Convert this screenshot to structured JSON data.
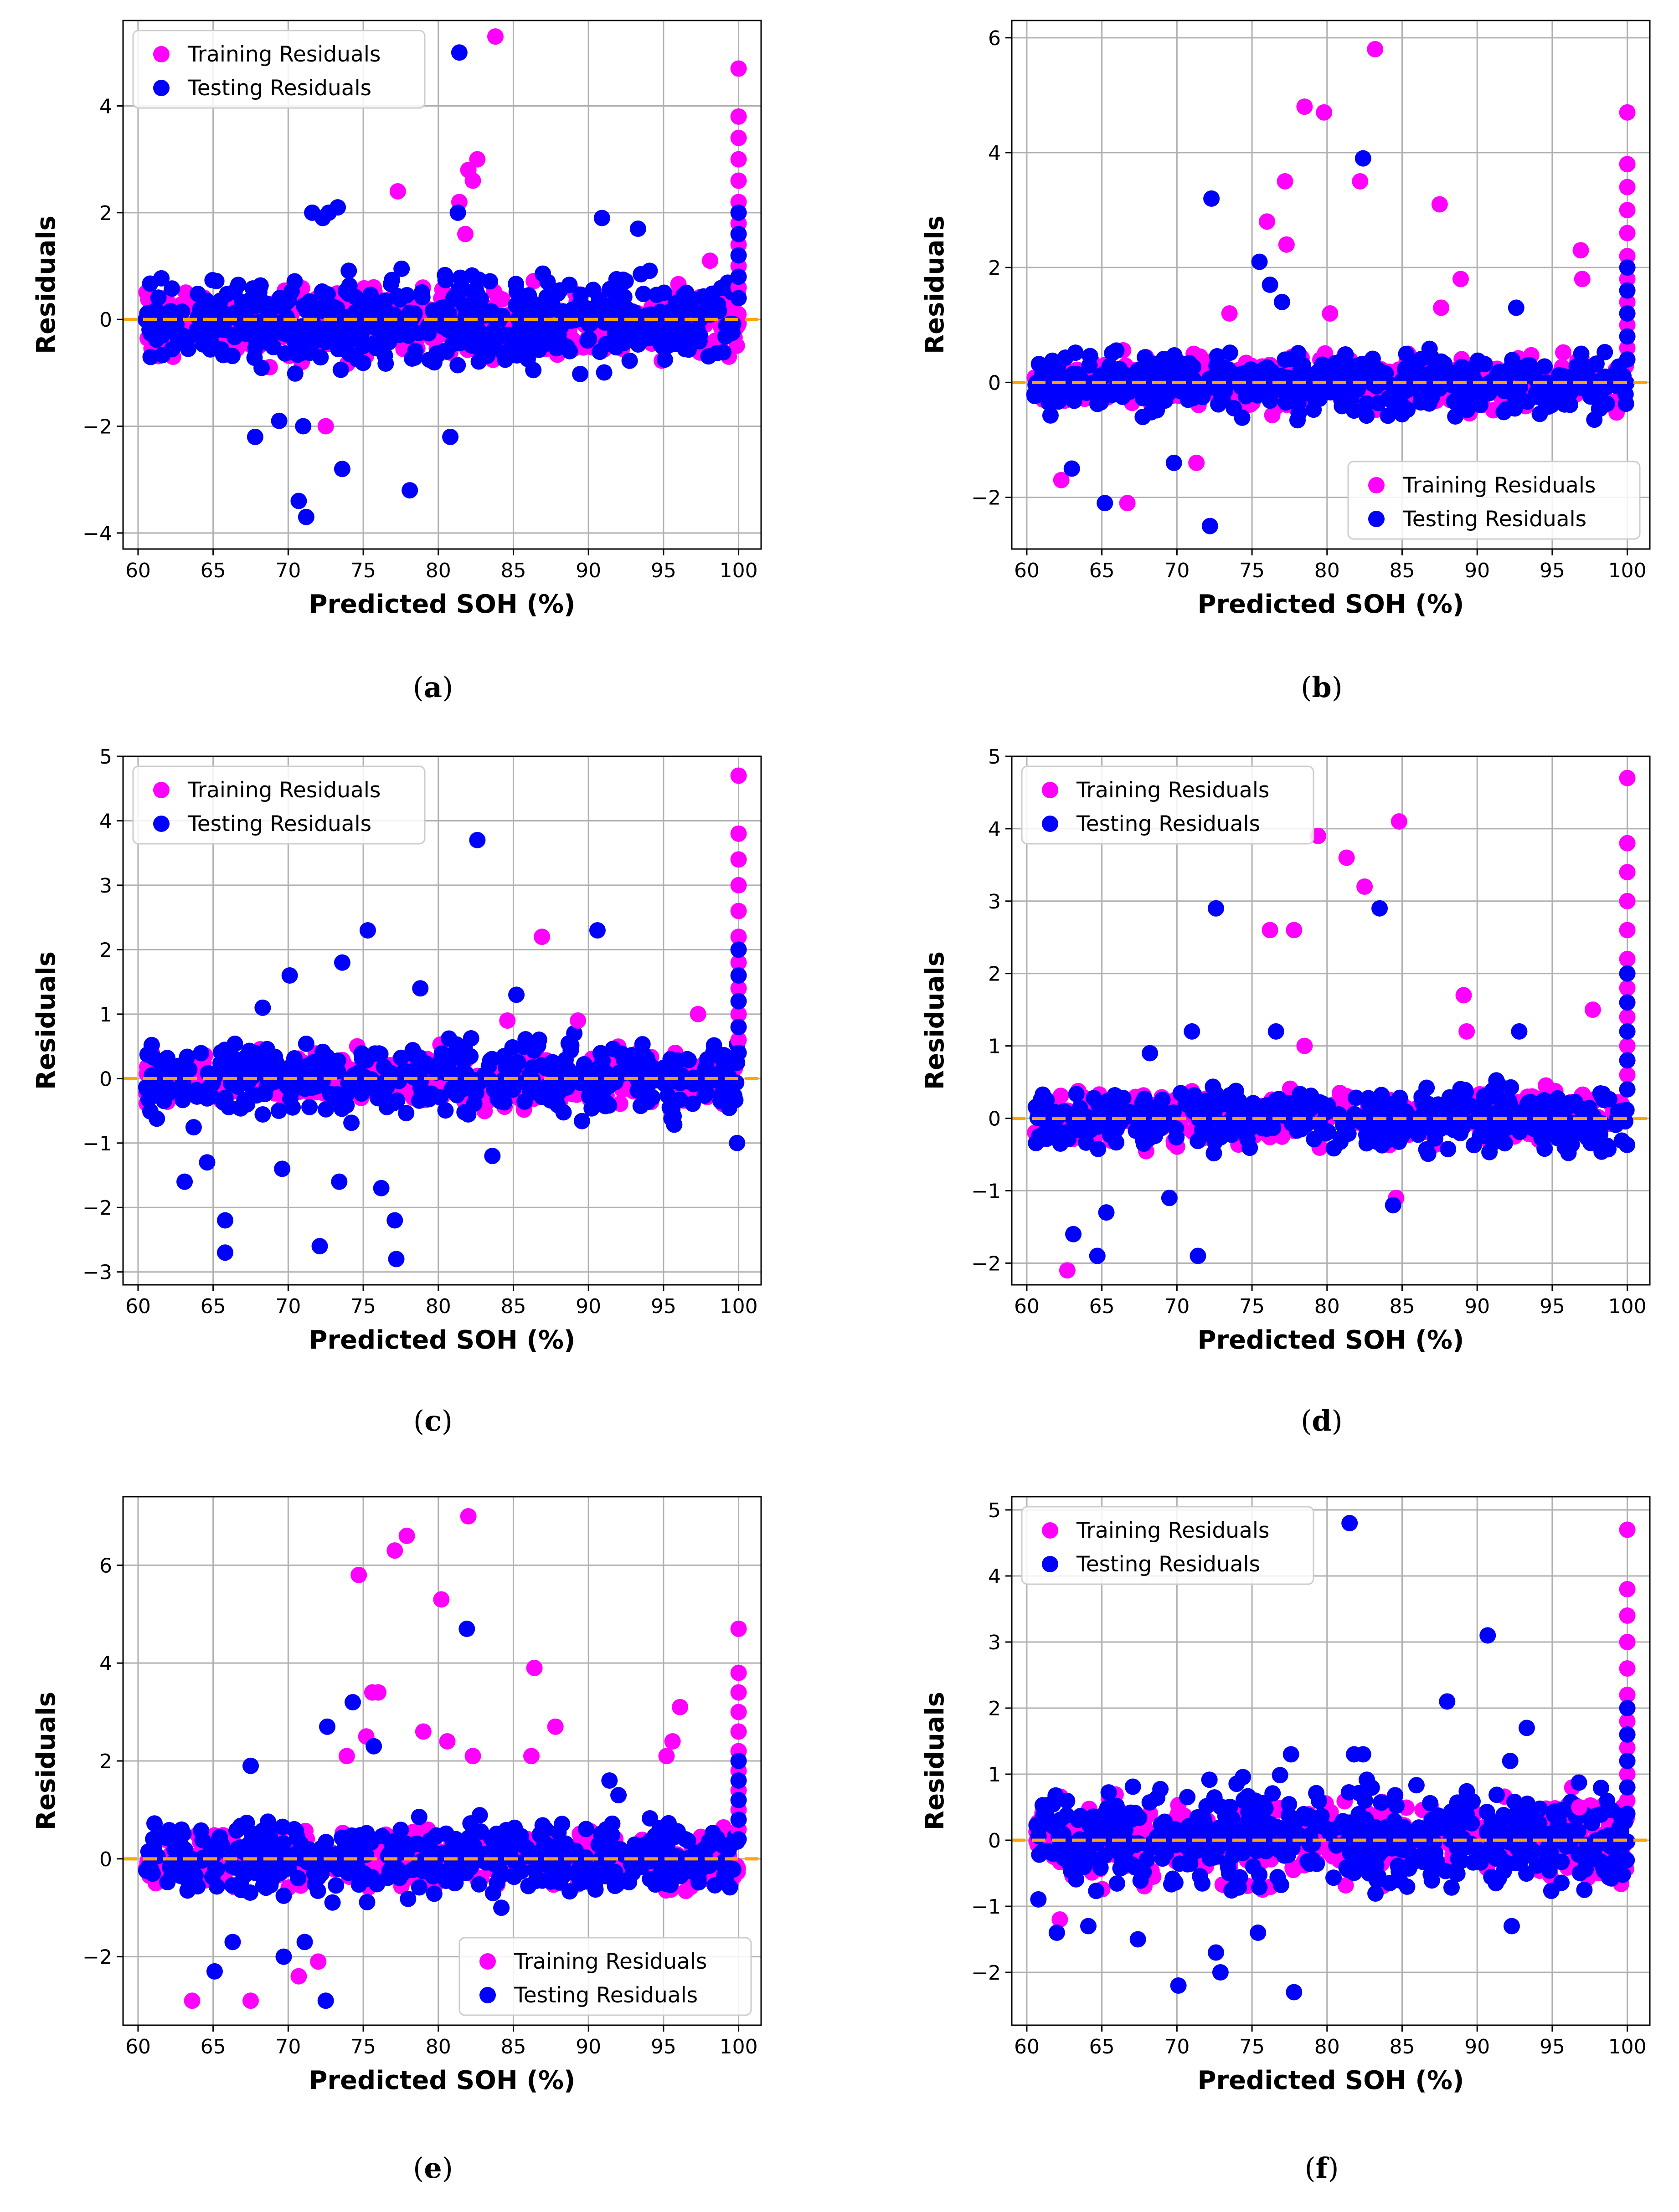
{
  "figure": {
    "series_names": [
      "Training Residuals",
      "Testing Residuals"
    ],
    "colors": {
      "training": "#ff00ff",
      "testing": "#0000ff",
      "zero_line": "#ffa500",
      "grid": "#b0b0b0"
    }
  },
  "chart_data": [
    {
      "id": "a",
      "type": "scatter",
      "caption": "a",
      "title": "",
      "xlabel": "Predicted SOH (%)",
      "ylabel": "Residuals",
      "xlim": [
        59,
        101.5
      ],
      "ylim": [
        -4.3,
        5.6
      ],
      "xticks": [
        60,
        65,
        70,
        75,
        80,
        85,
        90,
        95,
        100
      ],
      "yticks": [
        -4,
        -2,
        0,
        2,
        4
      ],
      "grid": true,
      "legend_position": "top-left",
      "zero_line": 0,
      "bulk": {
        "x_range": [
          60.5,
          100
        ],
        "band_training": [
          -1.0,
          0.9
        ],
        "band_testing": [
          -1.2,
          1.1
        ],
        "n_training": 460,
        "n_testing": 520
      },
      "series": [
        {
          "name": "Training Residuals",
          "points": [
            [
              83.8,
              5.3
            ],
            [
              82.6,
              3.0
            ],
            [
              82.0,
              2.8
            ],
            [
              82.3,
              2.6
            ],
            [
              81.4,
              2.2
            ],
            [
              77.3,
              2.4
            ],
            [
              81.8,
              1.6
            ],
            [
              98.1,
              1.1
            ],
            [
              72.5,
              -2.0
            ]
          ]
        },
        {
          "name": "Testing Residuals",
          "points": [
            [
              81.4,
              5.0
            ],
            [
              72.7,
              2.0
            ],
            [
              72.3,
              1.9
            ],
            [
              73.3,
              2.1
            ],
            [
              71.6,
              2.0
            ],
            [
              81.3,
              2.0
            ],
            [
              90.9,
              1.9
            ],
            [
              93.3,
              1.7
            ],
            [
              70.7,
              -3.4
            ],
            [
              71.2,
              -3.7
            ],
            [
              73.6,
              -2.8
            ],
            [
              78.1,
              -3.2
            ],
            [
              80.8,
              -2.2
            ],
            [
              67.8,
              -2.2
            ],
            [
              71.0,
              -2.0
            ],
            [
              69.4,
              -1.9
            ]
          ]
        }
      ],
      "spike_x100": {
        "training": [
          4.7,
          3.8,
          3.4,
          3.0,
          2.6,
          2.2,
          1.8,
          1.4,
          1.0,
          0.6
        ],
        "testing": [
          2.0,
          1.6,
          1.2,
          0.8,
          0.4
        ]
      }
    },
    {
      "id": "b",
      "type": "scatter",
      "caption": "b",
      "title": "",
      "xlabel": "Predicted SOH (%)",
      "ylabel": "Residuals",
      "xlim": [
        59,
        101.5
      ],
      "ylim": [
        -2.9,
        6.3
      ],
      "xticks": [
        60,
        65,
        70,
        75,
        80,
        85,
        90,
        95,
        100
      ],
      "yticks": [
        -2,
        0,
        2,
        4,
        6
      ],
      "grid": true,
      "legend_position": "bottom-right",
      "zero_line": 0,
      "bulk": {
        "x_range": [
          60.5,
          100
        ],
        "band_training": [
          -0.6,
          0.6
        ],
        "band_testing": [
          -0.7,
          0.7
        ],
        "n_training": 420,
        "n_testing": 480
      },
      "series": [
        {
          "name": "Training Residuals",
          "points": [
            [
              83.2,
              5.8
            ],
            [
              78.5,
              4.8
            ],
            [
              79.8,
              4.7
            ],
            [
              77.2,
              3.5
            ],
            [
              82.2,
              3.5
            ],
            [
              87.5,
              3.1
            ],
            [
              76.0,
              2.8
            ],
            [
              77.3,
              2.4
            ],
            [
              96.9,
              2.3
            ],
            [
              88.9,
              1.8
            ],
            [
              97.0,
              1.8
            ],
            [
              80.2,
              1.2
            ],
            [
              87.6,
              1.3
            ],
            [
              73.5,
              1.2
            ],
            [
              62.3,
              -1.7
            ],
            [
              66.7,
              -2.1
            ],
            [
              71.3,
              -1.4
            ]
          ]
        },
        {
          "name": "Testing Residuals",
          "points": [
            [
              82.4,
              3.9
            ],
            [
              72.3,
              3.2
            ],
            [
              75.5,
              2.1
            ],
            [
              76.2,
              1.7
            ],
            [
              77.0,
              1.4
            ],
            [
              72.2,
              -2.5
            ],
            [
              65.2,
              -2.1
            ],
            [
              63.0,
              -1.5
            ],
            [
              69.8,
              -1.4
            ],
            [
              92.6,
              1.3
            ]
          ]
        }
      ],
      "spike_x100": {
        "training": [
          4.7,
          3.8,
          3.4,
          3.0,
          2.6,
          2.2,
          1.8,
          1.4,
          1.0,
          0.6
        ],
        "testing": [
          2.0,
          1.6,
          1.2,
          0.8,
          0.4
        ]
      }
    },
    {
      "id": "c",
      "type": "scatter",
      "caption": "c",
      "title": "",
      "xlabel": "Predicted SOH (%)",
      "ylabel": "Residuals",
      "xlim": [
        59,
        101.5
      ],
      "ylim": [
        -3.2,
        5.0
      ],
      "xticks": [
        60,
        65,
        70,
        75,
        80,
        85,
        90,
        95,
        100
      ],
      "yticks": [
        -3,
        -2,
        -1,
        0,
        1,
        2,
        3,
        4,
        5
      ],
      "grid": true,
      "legend_position": "top-left",
      "zero_line": 0,
      "bulk": {
        "x_range": [
          60.5,
          100
        ],
        "band_training": [
          -0.6,
          0.6
        ],
        "band_testing": [
          -0.8,
          0.8
        ],
        "n_training": 380,
        "n_testing": 440
      },
      "series": [
        {
          "name": "Training Residuals",
          "points": [
            [
              86.9,
              2.2
            ],
            [
              97.3,
              1.0
            ],
            [
              84.6,
              0.9
            ],
            [
              89.3,
              0.9
            ]
          ]
        },
        {
          "name": "Testing Residuals",
          "points": [
            [
              82.6,
              3.7
            ],
            [
              75.3,
              2.3
            ],
            [
              90.6,
              2.3
            ],
            [
              73.6,
              1.8
            ],
            [
              70.1,
              1.6
            ],
            [
              78.8,
              1.4
            ],
            [
              68.3,
              1.1
            ],
            [
              85.2,
              1.3
            ],
            [
              65.8,
              -2.7
            ],
            [
              65.8,
              -2.2
            ],
            [
              72.1,
              -2.6
            ],
            [
              77.2,
              -2.8
            ],
            [
              77.1,
              -2.2
            ],
            [
              76.2,
              -1.7
            ],
            [
              63.1,
              -1.6
            ],
            [
              73.4,
              -1.6
            ],
            [
              69.6,
              -1.4
            ],
            [
              64.6,
              -1.3
            ],
            [
              83.6,
              -1.2
            ],
            [
              99.9,
              -1.0
            ]
          ]
        }
      ],
      "spike_x100": {
        "training": [
          4.7,
          3.8,
          3.4,
          3.0,
          2.6,
          2.2,
          1.8,
          1.4,
          1.0,
          0.6
        ],
        "testing": [
          2.0,
          1.6,
          1.2,
          0.8,
          0.4
        ]
      }
    },
    {
      "id": "d",
      "type": "scatter",
      "caption": "d",
      "title": "",
      "xlabel": "Predicted SOH (%)",
      "ylabel": "Residuals",
      "xlim": [
        59,
        101.5
      ],
      "ylim": [
        -2.3,
        5.0
      ],
      "xticks": [
        60,
        65,
        70,
        75,
        80,
        85,
        90,
        95,
        100
      ],
      "yticks": [
        -2,
        -1,
        0,
        1,
        2,
        3,
        4,
        5
      ],
      "grid": true,
      "legend_position": "top-left",
      "zero_line": 0,
      "bulk": {
        "x_range": [
          60.5,
          100
        ],
        "band_training": [
          -0.5,
          0.5
        ],
        "band_testing": [
          -0.6,
          0.6
        ],
        "n_training": 380,
        "n_testing": 440
      },
      "series": [
        {
          "name": "Training Residuals",
          "points": [
            [
              84.8,
              4.1
            ],
            [
              79.4,
              3.9
            ],
            [
              81.3,
              3.6
            ],
            [
              82.5,
              3.2
            ],
            [
              76.2,
              2.6
            ],
            [
              77.8,
              2.6
            ],
            [
              89.1,
              1.7
            ],
            [
              97.7,
              1.5
            ],
            [
              89.3,
              1.2
            ],
            [
              78.5,
              1.0
            ],
            [
              62.7,
              -2.1
            ],
            [
              84.6,
              -1.1
            ]
          ]
        },
        {
          "name": "Testing Residuals",
          "points": [
            [
              72.6,
              2.9
            ],
            [
              83.5,
              2.9
            ],
            [
              71.0,
              1.2
            ],
            [
              76.6,
              1.2
            ],
            [
              92.8,
              1.2
            ],
            [
              68.2,
              0.9
            ],
            [
              63.1,
              -1.6
            ],
            [
              64.7,
              -1.9
            ],
            [
              71.4,
              -1.9
            ],
            [
              65.3,
              -1.3
            ],
            [
              69.5,
              -1.1
            ],
            [
              84.4,
              -1.2
            ]
          ]
        }
      ],
      "spike_x100": {
        "training": [
          4.7,
          3.8,
          3.4,
          3.0,
          2.6,
          2.2,
          1.8,
          1.4,
          1.0,
          0.6
        ],
        "testing": [
          2.0,
          1.6,
          1.2,
          0.8,
          0.4
        ]
      }
    },
    {
      "id": "e",
      "type": "scatter",
      "caption": "e",
      "title": "",
      "xlabel": "Predicted SOH (%)",
      "ylabel": "Residuals",
      "xlim": [
        59,
        101.5
      ],
      "ylim": [
        -3.4,
        7.4
      ],
      "xticks": [
        60,
        65,
        70,
        75,
        80,
        85,
        90,
        95,
        100
      ],
      "yticks": [
        -2,
        0,
        2,
        4,
        6
      ],
      "grid": true,
      "legend_position": "bottom-right",
      "zero_line": 0,
      "bulk": {
        "x_range": [
          60.5,
          100
        ],
        "band_training": [
          -0.8,
          0.8
        ],
        "band_testing": [
          -1.0,
          1.0
        ],
        "n_training": 400,
        "n_testing": 460
      },
      "series": [
        {
          "name": "Training Residuals",
          "points": [
            [
              82.0,
              7.0
            ],
            [
              77.9,
              6.6
            ],
            [
              77.1,
              6.3
            ],
            [
              74.7,
              5.8
            ],
            [
              80.2,
              5.3
            ],
            [
              75.6,
              3.4
            ],
            [
              76.0,
              3.4
            ],
            [
              86.4,
              3.9
            ],
            [
              96.1,
              3.1
            ],
            [
              87.8,
              2.7
            ],
            [
              79.0,
              2.6
            ],
            [
              75.2,
              2.5
            ],
            [
              80.6,
              2.4
            ],
            [
              95.6,
              2.4
            ],
            [
              95.2,
              2.1
            ],
            [
              82.3,
              2.1
            ],
            [
              86.2,
              2.1
            ],
            [
              73.9,
              2.1
            ],
            [
              63.6,
              -2.9
            ],
            [
              67.5,
              -2.9
            ],
            [
              70.7,
              -2.4
            ],
            [
              72.0,
              -2.1
            ]
          ]
        },
        {
          "name": "Testing Residuals",
          "points": [
            [
              81.9,
              4.7
            ],
            [
              74.3,
              3.2
            ],
            [
              72.6,
              2.7
            ],
            [
              75.7,
              2.3
            ],
            [
              67.5,
              1.9
            ],
            [
              91.4,
              1.6
            ],
            [
              92.0,
              1.3
            ],
            [
              72.5,
              -2.9
            ],
            [
              66.3,
              -1.7
            ],
            [
              65.1,
              -2.3
            ],
            [
              69.7,
              -2.0
            ],
            [
              71.1,
              -1.7
            ],
            [
              84.2,
              -1.0
            ]
          ]
        }
      ],
      "spike_x100": {
        "training": [
          4.7,
          3.8,
          3.4,
          3.0,
          2.6,
          2.2,
          1.8,
          1.4,
          1.0,
          0.6
        ],
        "testing": [
          2.0,
          1.6,
          1.2,
          0.8,
          0.4
        ]
      }
    },
    {
      "id": "f",
      "type": "scatter",
      "caption": "f",
      "title": "",
      "xlabel": "Predicted SOH (%)",
      "ylabel": "Residuals",
      "xlim": [
        59,
        101.5
      ],
      "ylim": [
        -2.8,
        5.2
      ],
      "xticks": [
        60,
        65,
        70,
        75,
        80,
        85,
        90,
        95,
        100
      ],
      "yticks": [
        -2,
        -1,
        0,
        1,
        2,
        3,
        4,
        5
      ],
      "grid": true,
      "legend_position": "top-left",
      "zero_line": 0,
      "bulk": {
        "x_range": [
          60.5,
          100
        ],
        "band_training": [
          -0.9,
          0.9
        ],
        "band_testing": [
          -1.1,
          1.1
        ],
        "n_training": 460,
        "n_testing": 520
      },
      "series": [
        {
          "name": "Training Residuals",
          "points": [
            [
              62.2,
              -1.2
            ],
            [
              96.8,
              0.5
            ]
          ]
        },
        {
          "name": "Testing Residuals",
          "points": [
            [
              81.5,
              4.8
            ],
            [
              90.7,
              3.1
            ],
            [
              88.0,
              2.1
            ],
            [
              93.3,
              1.7
            ],
            [
              92.2,
              1.2
            ],
            [
              81.8,
              1.3
            ],
            [
              82.4,
              1.3
            ],
            [
              77.6,
              1.3
            ],
            [
              70.1,
              -2.2
            ],
            [
              77.8,
              -2.3
            ],
            [
              72.9,
              -2.0
            ],
            [
              72.6,
              -1.7
            ],
            [
              67.4,
              -1.5
            ],
            [
              62.0,
              -1.4
            ],
            [
              75.4,
              -1.4
            ],
            [
              92.3,
              -1.3
            ],
            [
              64.1,
              -1.3
            ]
          ]
        }
      ],
      "spike_x100": {
        "training": [
          4.7,
          3.8,
          3.4,
          3.0,
          2.6,
          2.2,
          1.8,
          1.4,
          1.0,
          0.6
        ],
        "testing": [
          2.0,
          1.6,
          1.2,
          0.8,
          0.4
        ]
      }
    }
  ]
}
